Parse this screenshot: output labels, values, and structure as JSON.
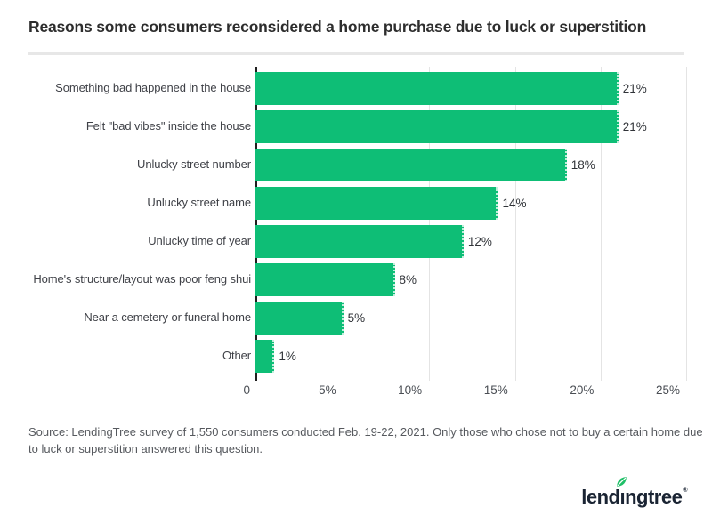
{
  "header": {
    "title": "Reasons some consumers reconsidered a home purchase due to luck or superstition"
  },
  "chart_data": {
    "type": "bar",
    "orientation": "horizontal",
    "title": "Reasons some consumers reconsidered a home purchase due to luck or superstition",
    "categories": [
      "Something bad happened in the house",
      "Felt \"bad vibes\" inside the house",
      "Unlucky street number",
      "Unlucky street name",
      "Unlucky time of year",
      "Home's structure/layout was poor feng shui",
      "Near a cemetery or funeral home",
      "Other"
    ],
    "values": [
      21,
      21,
      18,
      14,
      12,
      8,
      5,
      1
    ],
    "value_labels": [
      "21%",
      "21%",
      "18%",
      "14%",
      "12%",
      "8%",
      "5%",
      "1%"
    ],
    "x_ticks": [
      "0",
      "5%",
      "10%",
      "15%",
      "20%",
      "25%"
    ],
    "xlim": [
      0,
      25
    ],
    "xlabel": "",
    "ylabel": "",
    "grid": true,
    "legend": false,
    "bar_color": "#0EBE76",
    "gridline_color": "#E4E4E4",
    "axis_color": "#1F1F1F"
  },
  "footer": {
    "source_lines": [
      "Source: LendingTree survey of 1,550 consumers conducted Feb. 19-22, 2021. Only those who chose not to buy a certain home due",
      "to luck or superstition answered this question."
    ]
  },
  "logo": {
    "brand": "lendingtree",
    "pre": "lend",
    "dotless_i": "ı",
    "post": "ngtree",
    "trademark": "®",
    "navy": "#1A2433",
    "leaf_green": "#1FBF67"
  }
}
